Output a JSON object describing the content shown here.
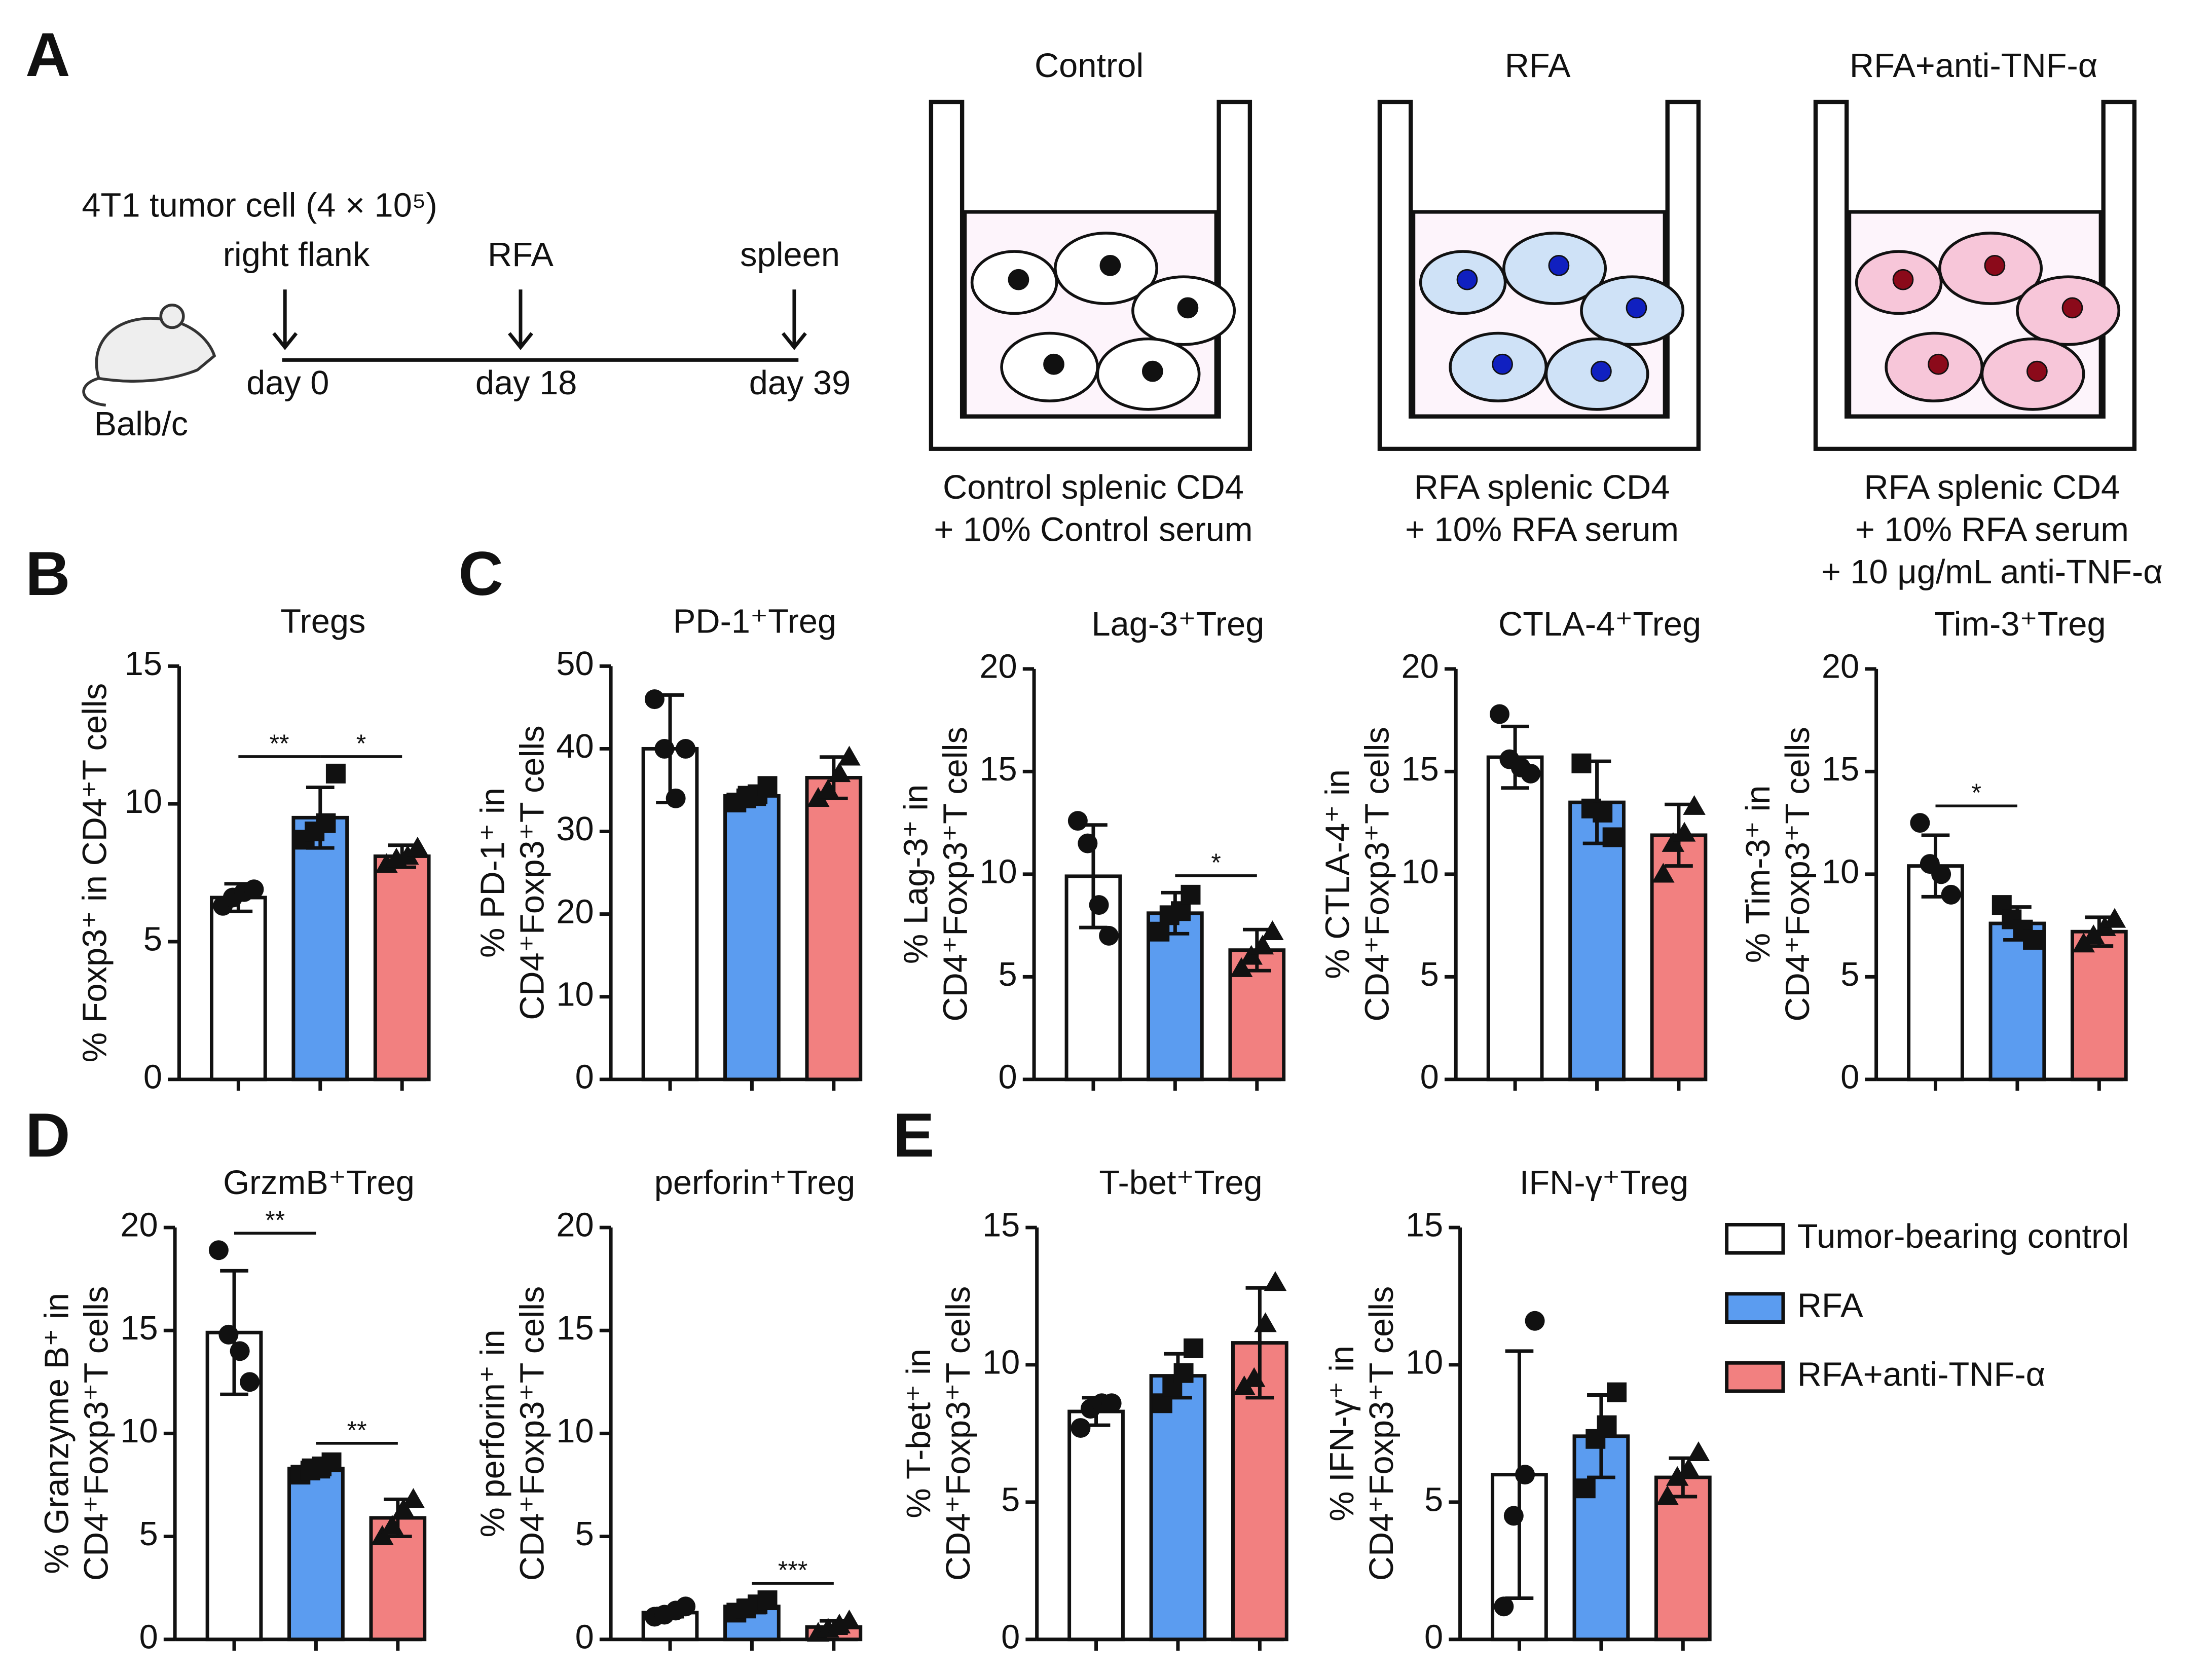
{
  "panels": [
    "A",
    "B",
    "C",
    "D",
    "E"
  ],
  "timeline": {
    "cell": "4T1 tumor cell (4 × 10⁵)",
    "mouse": "Balb/c",
    "events": [
      "right flank",
      "RFA",
      "spleen"
    ],
    "days": [
      "day 0",
      "day 18",
      "day 39"
    ]
  },
  "wells": [
    {
      "title": "Control",
      "caption": [
        "Control splenic CD4",
        "+ 10% Control serum"
      ]
    },
    {
      "title": "RFA",
      "caption": [
        "RFA splenic CD4",
        "+ 10% RFA serum"
      ]
    },
    {
      "title": "RFA+anti-TNF-α",
      "caption": [
        "RFA splenic CD4",
        "+ 10% RFA serum",
        "+ 10 μg/mL anti-TNF-α"
      ]
    }
  ],
  "legend": [
    {
      "name": "Tumor-bearing control",
      "color": "#ffffff"
    },
    {
      "name": "RFA",
      "color": "#5b9cf0"
    },
    {
      "name": "RFA+anti-TNF-α",
      "color": "#f28080"
    }
  ],
  "chart_data": [
    {
      "type": "bar",
      "title": "Tregs",
      "ylabel": [
        "% Foxp3⁺ in CD4⁺T cells"
      ],
      "ylim": [
        0,
        15
      ],
      "yticks": [
        0,
        5,
        10,
        15
      ],
      "values": [
        6.6,
        9.5,
        8.1
      ],
      "errors": [
        0.5,
        1.1,
        0.4
      ],
      "points": [
        [
          6.3,
          6.6,
          6.8,
          6.9
        ],
        [
          8.7,
          9.0,
          9.3,
          11.1
        ],
        [
          7.8,
          8.0,
          8.1,
          8.4
        ]
      ],
      "significance": [
        {
          "from": 0,
          "to": 1,
          "label": "**"
        },
        {
          "from": 1,
          "to": 2,
          "label": "*"
        }
      ]
    },
    {
      "type": "bar",
      "title": "PD-1⁺Treg",
      "ylabel": [
        "% PD-1⁺ in",
        "CD4⁺Foxp3⁺T cells"
      ],
      "ylim": [
        0,
        50
      ],
      "yticks": [
        0,
        10,
        20,
        30,
        40,
        50
      ],
      "values": [
        40,
        34.3,
        36.5
      ],
      "errors": [
        6.5,
        1,
        2.5
      ],
      "points": [
        [
          46,
          40,
          34,
          40
        ],
        [
          33.5,
          34,
          34.5,
          35.5
        ],
        [
          34,
          35,
          37,
          39
        ]
      ],
      "significance": []
    },
    {
      "type": "bar",
      "title": "Lag-3⁺Treg",
      "ylabel": [
        "% Lag-3⁺ in",
        "CD4⁺Foxp3⁺T cells"
      ],
      "ylim": [
        0,
        20
      ],
      "yticks": [
        0,
        5,
        10,
        15,
        20
      ],
      "values": [
        9.9,
        8.1,
        6.3
      ],
      "errors": [
        2.5,
        1,
        1
      ],
      "points": [
        [
          12.6,
          11.5,
          8.5,
          7.0
        ],
        [
          7.2,
          8.0,
          8.2,
          9.0
        ],
        [
          5.4,
          6.0,
          6.5,
          7.2
        ]
      ],
      "significance": [
        {
          "from": 1,
          "to": 2,
          "label": "*"
        }
      ]
    },
    {
      "type": "bar",
      "title": "CTLA-4⁺Treg",
      "ylabel": [
        "% CTLA-4⁺ in",
        "CD4⁺Foxp3⁺T cells"
      ],
      "ylim": [
        0,
        20
      ],
      "yticks": [
        0,
        5,
        10,
        15,
        20
      ],
      "values": [
        15.7,
        13.5,
        11.9
      ],
      "errors": [
        1.5,
        2,
        1.5
      ],
      "points": [
        [
          17.8,
          15.6,
          15.2,
          14.9
        ],
        [
          15.4,
          13.2,
          13.0,
          11.8
        ],
        [
          10.0,
          11.5,
          12.0,
          13.3
        ]
      ],
      "significance": []
    },
    {
      "type": "bar",
      "title": "Tim-3⁺Treg",
      "ylabel": [
        "% Tim-3⁺ in",
        "CD4⁺Foxp3⁺T cells"
      ],
      "ylim": [
        0,
        20
      ],
      "yticks": [
        0,
        5,
        10,
        15,
        20
      ],
      "values": [
        10.4,
        7.6,
        7.2
      ],
      "errors": [
        1.5,
        0.8,
        0.7
      ],
      "points": [
        [
          12.5,
          10.5,
          10.0,
          9.0
        ],
        [
          8.5,
          7.8,
          7.3,
          6.8
        ],
        [
          6.6,
          7.0,
          7.4,
          7.8
        ]
      ],
      "significance": [
        {
          "from": 0,
          "to": 1,
          "label": "*"
        }
      ]
    },
    {
      "type": "bar",
      "title": "GrzmB⁺Treg",
      "ylabel": [
        "% Granzyme B⁺ in",
        "CD4⁺Foxp3⁺T cells"
      ],
      "ylim": [
        0,
        20
      ],
      "yticks": [
        0,
        5,
        10,
        15,
        20
      ],
      "values": [
        14.9,
        8.3,
        5.9
      ],
      "errors": [
        3,
        0.4,
        0.9
      ],
      "points": [
        [
          18.9,
          14.8,
          14.0,
          12.5
        ],
        [
          8.0,
          8.2,
          8.4,
          8.6
        ],
        [
          5.0,
          5.5,
          6.3,
          6.8
        ]
      ],
      "significance": [
        {
          "from": 0,
          "to": 1,
          "label": "**"
        },
        {
          "from": 1,
          "to": 2,
          "label": "**"
        }
      ]
    },
    {
      "type": "bar",
      "title": "perforin⁺Treg",
      "ylabel": [
        "% perforin⁺ in",
        "CD4⁺Foxp3⁺T cells"
      ],
      "ylim": [
        0,
        20
      ],
      "yticks": [
        0,
        5,
        10,
        15,
        20
      ],
      "values": [
        1.3,
        1.6,
        0.6
      ],
      "errors": [
        0.2,
        0.3,
        0.3
      ],
      "points": [
        [
          1.1,
          1.2,
          1.4,
          1.6
        ],
        [
          1.3,
          1.5,
          1.7,
          1.9
        ],
        [
          0.3,
          0.5,
          0.7,
          0.9
        ]
      ],
      "significance": [
        {
          "from": 1,
          "to": 2,
          "label": "***"
        }
      ]
    },
    {
      "type": "bar",
      "title": "T-bet⁺Treg",
      "ylabel": [
        "% T-bet⁺ in",
        "CD4⁺Foxp3⁺T cells"
      ],
      "ylim": [
        0,
        15
      ],
      "yticks": [
        0,
        5,
        10,
        15
      ],
      "values": [
        8.3,
        9.6,
        10.8
      ],
      "errors": [
        0.5,
        0.8,
        2
      ],
      "points": [
        [
          7.7,
          8.4,
          8.6,
          8.6
        ],
        [
          8.6,
          9.2,
          9.7,
          10.6
        ],
        [
          9.2,
          9.5,
          11.5,
          13.0
        ]
      ],
      "significance": []
    },
    {
      "type": "bar",
      "title": "IFN-γ⁺Treg",
      "ylabel": [
        "% IFN-γ⁺ in",
        "CD4⁺Foxp3⁺T cells"
      ],
      "ylim": [
        0,
        15
      ],
      "yticks": [
        0,
        5,
        10,
        15
      ],
      "values": [
        6,
        7.4,
        5.9
      ],
      "errors": [
        4.5,
        1.5,
        0.7
      ],
      "points": [
        [
          1.2,
          4.5,
          6.0,
          11.6
        ],
        [
          5.5,
          7.3,
          7.8,
          9.0
        ],
        [
          5.2,
          5.9,
          6.2,
          6.8
        ]
      ],
      "significance": []
    }
  ]
}
